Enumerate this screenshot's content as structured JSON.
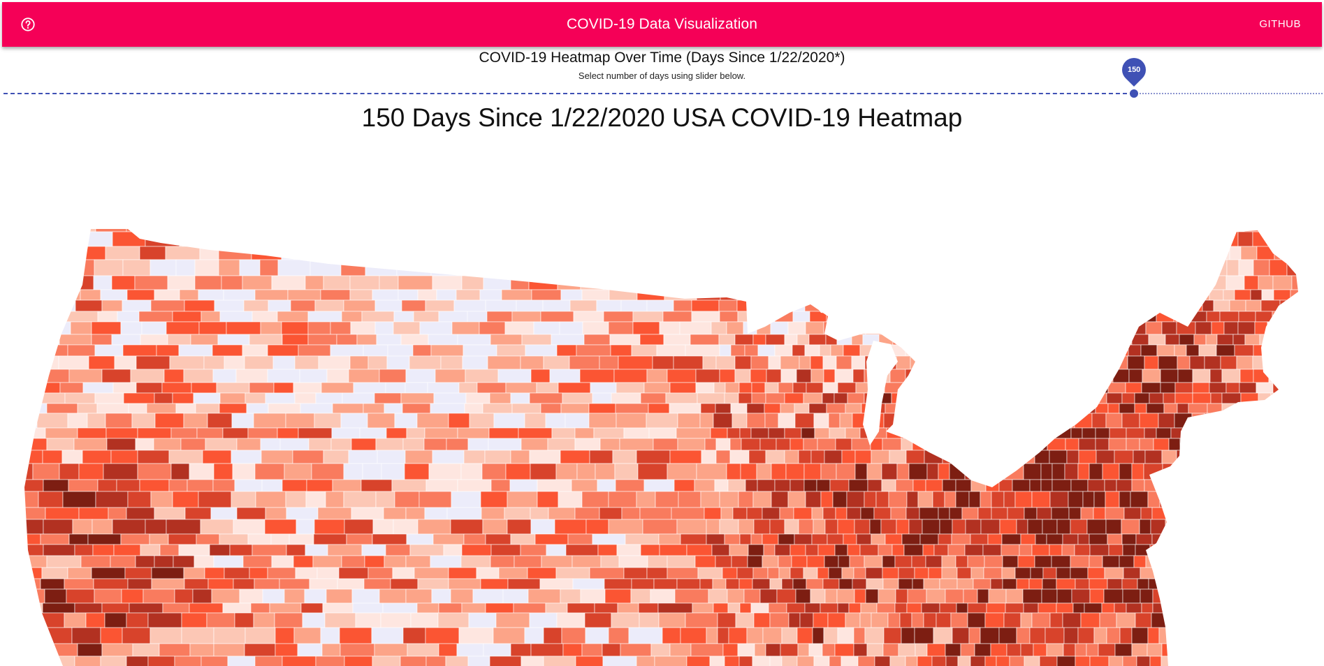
{
  "appbar": {
    "title": "COVID-19 Data Visualization",
    "github_label": "GITHUB",
    "help_icon": "help-circle-icon",
    "color": "#f50057"
  },
  "header": {
    "title": "COVID-19 Heatmap Over Time (Days Since 1/22/2020*)",
    "subtitle": "Select number of days using slider below."
  },
  "slider": {
    "value": 150,
    "value_label": "150",
    "min": 0,
    "max": 175,
    "color": "#3f51b5"
  },
  "map": {
    "title": "150 Days Since 1/22/2020 USA COVID-19 Heatmap",
    "palette": [
      "#ececfa",
      "#fee6e0",
      "#fcc7b5",
      "#fca488",
      "#f97b5e",
      "#fb5533",
      "#d8432b",
      "#b23121",
      "#7d1e12"
    ],
    "outline_color": "#ffffff"
  }
}
